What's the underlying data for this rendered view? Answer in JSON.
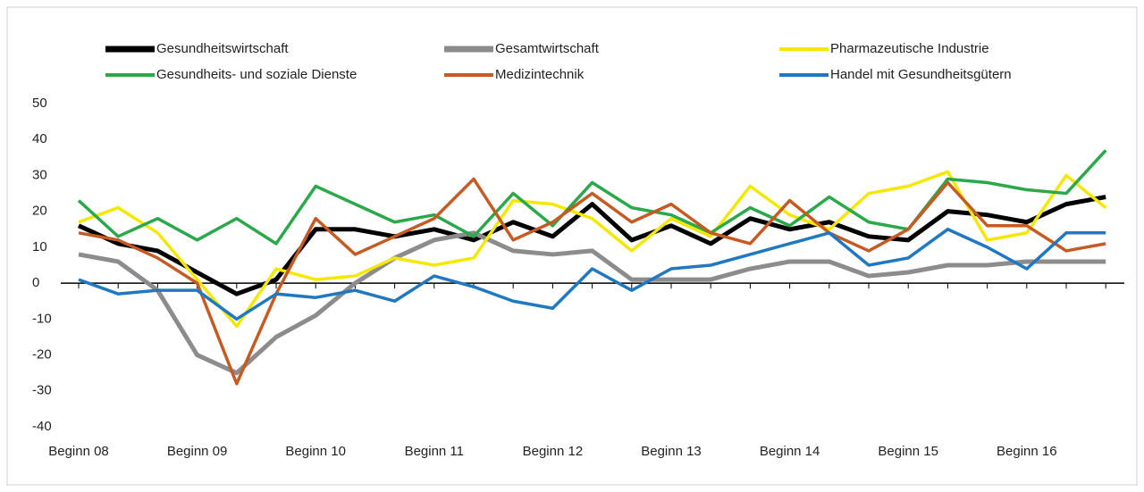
{
  "chart_data": {
    "type": "line",
    "categories": [
      "Beginn 08",
      null,
      null,
      "Beginn 09",
      null,
      null,
      "Beginn 10",
      null,
      null,
      "Beginn 11",
      null,
      null,
      "Beginn 12",
      null,
      null,
      "Beginn 13",
      null,
      null,
      "Beginn 14",
      null,
      null,
      "Beginn 15",
      null,
      null,
      "Beginn 16",
      null,
      null
    ],
    "series": [
      {
        "name": "Gesundheitswirtschaft",
        "color": "#000000",
        "values": [
          16,
          11,
          9,
          3,
          -3,
          1,
          15,
          15,
          13,
          15,
          12,
          17,
          13,
          22,
          12,
          16,
          11,
          18,
          15,
          17,
          13,
          12,
          20,
          19,
          17,
          22,
          24
        ]
      },
      {
        "name": "Gesamtwirtschaft",
        "color": "#8c8c8c",
        "values": [
          8,
          6,
          -2,
          -20,
          -25,
          -15,
          -9,
          0,
          7,
          12,
          14,
          9,
          8,
          9,
          1,
          1,
          1,
          4,
          6,
          6,
          2,
          3,
          5,
          5,
          6,
          6,
          6
        ]
      },
      {
        "name": "Pharmazeutische Industrie",
        "color": "#f5e800",
        "values": [
          17,
          21,
          14,
          1,
          -12,
          4,
          1,
          2,
          7,
          5,
          7,
          23,
          22,
          18,
          9,
          18,
          13,
          27,
          19,
          15,
          25,
          27,
          31,
          12,
          14,
          30,
          21
        ]
      },
      {
        "name": "Gesundheits- und soziale Dienste",
        "color": "#2aa84a",
        "values": [
          23,
          13,
          18,
          12,
          18,
          11,
          27,
          22,
          17,
          19,
          13,
          25,
          16,
          28,
          21,
          19,
          14,
          21,
          16,
          24,
          17,
          15,
          29,
          28,
          26,
          25,
          37
        ]
      },
      {
        "name": "Medizintechnik",
        "color": "#c55a22",
        "values": [
          14,
          12,
          7,
          0,
          -28,
          -3,
          18,
          8,
          13,
          18,
          29,
          12,
          17,
          25,
          17,
          22,
          14,
          11,
          23,
          14,
          9,
          15,
          28,
          16,
          16,
          9,
          11
        ]
      },
      {
        "name": "Handel mit Gesundheitsgütern",
        "color": "#1f78c1",
        "values": [
          1,
          -3,
          -2,
          -2,
          -10,
          -3,
          -4,
          -2,
          -5,
          2,
          -1,
          -5,
          -7,
          4,
          -2,
          4,
          5,
          8,
          11,
          14,
          5,
          7,
          15,
          10,
          4,
          14,
          14
        ]
      }
    ],
    "ylim": [
      -40,
      50
    ],
    "yticks": [
      -40,
      -30,
      -20,
      -10,
      0,
      10,
      20,
      30,
      40,
      50
    ],
    "grid": false
  }
}
